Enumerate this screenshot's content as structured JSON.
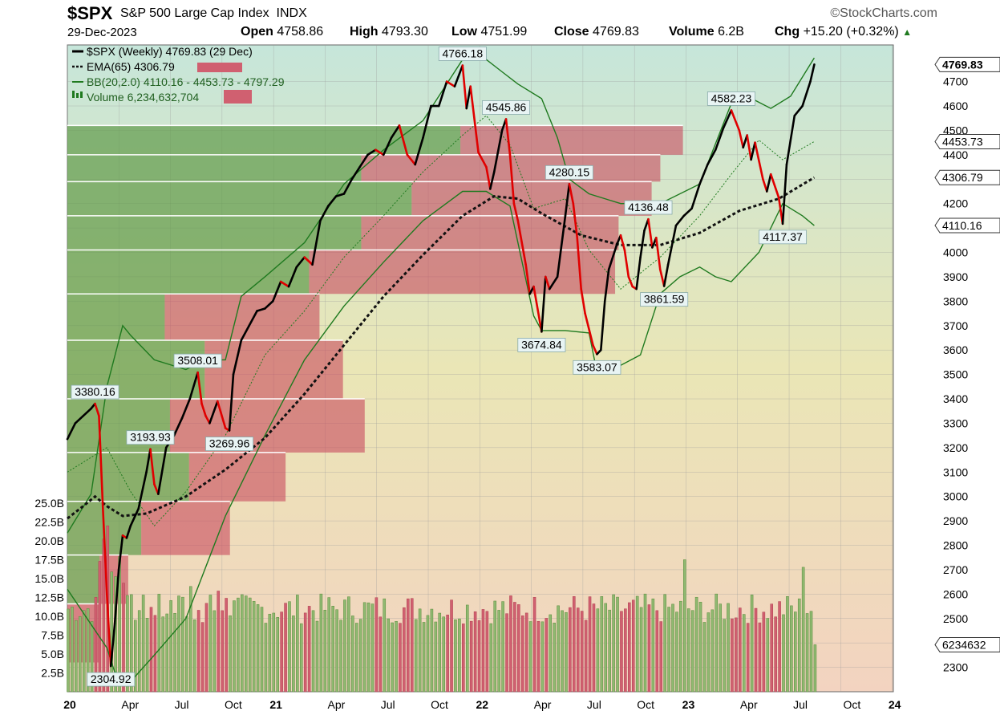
{
  "header": {
    "symbol": "$SPX",
    "name": "S&P 500 Large Cap Index",
    "exchange": "INDX",
    "source": "©StockCharts.com",
    "date": "29-Dec-2023",
    "open_label": "Open",
    "open": "4758.86",
    "high_label": "High",
    "high": "4793.30",
    "low_label": "Low",
    "low": "4751.99",
    "close_label": "Close",
    "close": "4769.83",
    "volume_label": "Volume",
    "volume": "6.2B",
    "chg_label": "Chg",
    "chg": "+15.20 (+0.32%)"
  },
  "legend": {
    "price": "$SPX (Weekly) 4769.83 (29 Dec)",
    "ema": "EMA(65) 4306.79",
    "bb": "BB(20,2.0) 4110.16 - 4453.73 - 4797.29",
    "volume": "Volume 6,234,632,704"
  },
  "colors": {
    "up": "#000000",
    "down": "#e00000",
    "ema": "#111111",
    "bb": "#1f7a1f",
    "vol_up": "#8fb870",
    "vol_down": "#d06070",
    "bg_top": "#c6e6da",
    "bg_bottom": "#f3e4c7"
  },
  "chart_data": {
    "type": "line",
    "title": "$SPX (Weekly)",
    "x_range": [
      "2020-01",
      "2024-01"
    ],
    "ylim": [
      2200,
      4850
    ],
    "x_tick_labels": [
      "20",
      "Apr",
      "Jul",
      "Oct",
      "21",
      "Apr",
      "Jul",
      "Oct",
      "22",
      "Apr",
      "Jul",
      "Oct",
      "23",
      "Apr",
      "Jul",
      "Oct",
      "24"
    ],
    "y_tick_labels": [
      "2300",
      "2400",
      "2500",
      "2600",
      "2700",
      "2800",
      "2900",
      "3000",
      "3100",
      "3200",
      "3300",
      "3400",
      "3500",
      "3600",
      "3700",
      "3800",
      "3900",
      "4000",
      "4100",
      "4200",
      "4300",
      "4400",
      "4500",
      "4600",
      "4700"
    ],
    "volume_tick_labels": [
      "2.5B",
      "5.0B",
      "7.5B",
      "10.0B",
      "12.5B",
      "15.0B",
      "17.5B",
      "20.0B",
      "22.5B",
      "25.0B"
    ],
    "price_path": [
      [
        0,
        3235
      ],
      [
        2,
        3300
      ],
      [
        4,
        3330
      ],
      [
        6,
        3360
      ],
      [
        7,
        3380
      ],
      [
        8,
        3330
      ],
      [
        9,
        2950
      ],
      [
        10,
        2600
      ],
      [
        11,
        2305
      ],
      [
        12,
        2480
      ],
      [
        13,
        2700
      ],
      [
        14,
        2840
      ],
      [
        15,
        2830
      ],
      [
        16,
        2880
      ],
      [
        18,
        2950
      ],
      [
        20,
        3100
      ],
      [
        21,
        3194
      ],
      [
        22,
        3050
      ],
      [
        23,
        3010
      ],
      [
        25,
        3200
      ],
      [
        27,
        3250
      ],
      [
        29,
        3320
      ],
      [
        31,
        3400
      ],
      [
        33,
        3508
      ],
      [
        34,
        3380
      ],
      [
        35,
        3330
      ],
      [
        36,
        3300
      ],
      [
        38,
        3390
      ],
      [
        40,
        3280
      ],
      [
        41,
        3270
      ],
      [
        42,
        3500
      ],
      [
        44,
        3640
      ],
      [
        46,
        3700
      ],
      [
        48,
        3760
      ],
      [
        50,
        3770
      ],
      [
        52,
        3800
      ],
      [
        54,
        3880
      ],
      [
        56,
        3860
      ],
      [
        58,
        3940
      ],
      [
        60,
        3980
      ],
      [
        62,
        3950
      ],
      [
        64,
        4130
      ],
      [
        66,
        4190
      ],
      [
        68,
        4230
      ],
      [
        70,
        4240
      ],
      [
        72,
        4300
      ],
      [
        74,
        4350
      ],
      [
        76,
        4400
      ],
      [
        78,
        4420
      ],
      [
        80,
        4400
      ],
      [
        82,
        4470
      ],
      [
        84,
        4520
      ],
      [
        86,
        4400
      ],
      [
        88,
        4360
      ],
      [
        90,
        4470
      ],
      [
        92,
        4600
      ],
      [
        94,
        4600
      ],
      [
        96,
        4700
      ],
      [
        98,
        4680
      ],
      [
        100,
        4766
      ],
      [
        101,
        4590
      ],
      [
        102,
        4680
      ],
      [
        104,
        4410
      ],
      [
        106,
        4350
      ],
      [
        107,
        4260
      ],
      [
        108,
        4330
      ],
      [
        110,
        4500
      ],
      [
        111,
        4546
      ],
      [
        112,
        4400
      ],
      [
        113,
        4200
      ],
      [
        114,
        4130
      ],
      [
        116,
        3950
      ],
      [
        117,
        3830
      ],
      [
        118,
        3860
      ],
      [
        120,
        3675
      ],
      [
        121,
        3900
      ],
      [
        122,
        3850
      ],
      [
        124,
        3900
      ],
      [
        126,
        4150
      ],
      [
        127,
        4280
      ],
      [
        128,
        4200
      ],
      [
        129,
        4060
      ],
      [
        130,
        3850
      ],
      [
        131,
        3750
      ],
      [
        133,
        3620
      ],
      [
        134,
        3583
      ],
      [
        135,
        3600
      ],
      [
        136,
        3800
      ],
      [
        137,
        3930
      ],
      [
        139,
        4030
      ],
      [
        140,
        4070
      ],
      [
        141,
        4010
      ],
      [
        142,
        3900
      ],
      [
        143,
        3860
      ],
      [
        144,
        3850
      ],
      [
        145,
        3980
      ],
      [
        146,
        4090
      ],
      [
        147,
        4136
      ],
      [
        148,
        4020
      ],
      [
        149,
        4060
      ],
      [
        150,
        3930
      ],
      [
        151,
        3862
      ],
      [
        152,
        3950
      ],
      [
        154,
        4110
      ],
      [
        156,
        4150
      ],
      [
        158,
        4180
      ],
      [
        160,
        4280
      ],
      [
        162,
        4360
      ],
      [
        164,
        4420
      ],
      [
        166,
        4510
      ],
      [
        168,
        4582
      ],
      [
        170,
        4500
      ],
      [
        171,
        4430
      ],
      [
        172,
        4480
      ],
      [
        173,
        4380
      ],
      [
        174,
        4450
      ],
      [
        176,
        4300
      ],
      [
        177,
        4250
      ],
      [
        178,
        4320
      ],
      [
        180,
        4225
      ],
      [
        181,
        4117
      ],
      [
        182,
        4360
      ],
      [
        184,
        4560
      ],
      [
        186,
        4600
      ],
      [
        188,
        4700
      ],
      [
        189,
        4770
      ]
    ],
    "ema_path": [
      [
        0,
        2910
      ],
      [
        4,
        2960
      ],
      [
        7,
        3000
      ],
      [
        10,
        2960
      ],
      [
        14,
        2920
      ],
      [
        20,
        2930
      ],
      [
        30,
        3000
      ],
      [
        40,
        3110
      ],
      [
        50,
        3240
      ],
      [
        60,
        3420
      ],
      [
        70,
        3620
      ],
      [
        80,
        3820
      ],
      [
        90,
        3990
      ],
      [
        100,
        4150
      ],
      [
        108,
        4230
      ],
      [
        114,
        4220
      ],
      [
        120,
        4160
      ],
      [
        130,
        4070
      ],
      [
        140,
        4030
      ],
      [
        150,
        4030
      ],
      [
        160,
        4080
      ],
      [
        170,
        4170
      ],
      [
        180,
        4220
      ],
      [
        189,
        4307
      ]
    ],
    "bb_upper_path": [
      [
        0,
        2850
      ],
      [
        6,
        3010
      ],
      [
        10,
        3450
      ],
      [
        14,
        3700
      ],
      [
        16,
        3660
      ],
      [
        22,
        3560
      ],
      [
        30,
        3520
      ],
      [
        35,
        3560
      ],
      [
        40,
        3560
      ],
      [
        44,
        3820
      ],
      [
        50,
        3900
      ],
      [
        60,
        4040
      ],
      [
        70,
        4280
      ],
      [
        80,
        4420
      ],
      [
        90,
        4540
      ],
      [
        100,
        4790
      ],
      [
        106,
        4790
      ],
      [
        110,
        4740
      ],
      [
        114,
        4690
      ],
      [
        120,
        4630
      ],
      [
        124,
        4470
      ],
      [
        127,
        4300
      ],
      [
        132,
        4240
      ],
      [
        140,
        4200
      ],
      [
        150,
        4200
      ],
      [
        160,
        4280
      ],
      [
        168,
        4610
      ],
      [
        172,
        4640
      ],
      [
        178,
        4590
      ],
      [
        183,
        4640
      ],
      [
        189,
        4797
      ]
    ],
    "bb_middle_path": [
      [
        0,
        3100
      ],
      [
        10,
        3200
      ],
      [
        16,
        3020
      ],
      [
        22,
        2880
      ],
      [
        30,
        3020
      ],
      [
        40,
        3250
      ],
      [
        50,
        3580
      ],
      [
        60,
        3760
      ],
      [
        70,
        3980
      ],
      [
        80,
        4150
      ],
      [
        90,
        4330
      ],
      [
        100,
        4480
      ],
      [
        106,
        4560
      ],
      [
        112,
        4440
      ],
      [
        118,
        4180
      ],
      [
        126,
        4220
      ],
      [
        132,
        4010
      ],
      [
        140,
        3850
      ],
      [
        150,
        3980
      ],
      [
        160,
        4150
      ],
      [
        168,
        4320
      ],
      [
        175,
        4460
      ],
      [
        181,
        4380
      ],
      [
        189,
        4454
      ]
    ],
    "bb_lower_path": [
      [
        0,
        2620
      ],
      [
        10,
        2380
      ],
      [
        12,
        2280
      ],
      [
        17,
        2260
      ],
      [
        22,
        2350
      ],
      [
        30,
        2500
      ],
      [
        40,
        2920
      ],
      [
        50,
        3250
      ],
      [
        60,
        3560
      ],
      [
        70,
        3780
      ],
      [
        80,
        3960
      ],
      [
        90,
        4130
      ],
      [
        100,
        4250
      ],
      [
        106,
        4250
      ],
      [
        112,
        4190
      ],
      [
        118,
        3740
      ],
      [
        120,
        3680
      ],
      [
        126,
        3680
      ],
      [
        132,
        3670
      ],
      [
        134,
        3510
      ],
      [
        138,
        3520
      ],
      [
        145,
        3580
      ],
      [
        150,
        3830
      ],
      [
        155,
        3900
      ],
      [
        160,
        3940
      ],
      [
        164,
        3900
      ],
      [
        168,
        3880
      ],
      [
        175,
        4000
      ],
      [
        181,
        4200
      ],
      [
        186,
        4150
      ],
      [
        189,
        4110
      ]
    ],
    "annotations": [
      {
        "label": "3380.16",
        "week": 7,
        "value": 3380.16,
        "side": "above"
      },
      {
        "label": "2304.92",
        "week": 11,
        "value": 2304.92,
        "side": "below"
      },
      {
        "label": "3193.93",
        "week": 21,
        "value": 3193.93,
        "side": "above"
      },
      {
        "label": "3508.01",
        "week": 33,
        "value": 3508.01,
        "side": "above"
      },
      {
        "label": "3269.96",
        "week": 41,
        "value": 3269.96,
        "side": "below"
      },
      {
        "label": "4766.18",
        "week": 100,
        "value": 4766.18,
        "side": "above"
      },
      {
        "label": "4545.86",
        "week": 111,
        "value": 4545.86,
        "side": "above"
      },
      {
        "label": "3674.84",
        "week": 120,
        "value": 3674.84,
        "side": "below"
      },
      {
        "label": "4280.15",
        "week": 127,
        "value": 4280.15,
        "side": "above"
      },
      {
        "label": "3583.07",
        "week": 134,
        "value": 3583.07,
        "side": "below"
      },
      {
        "label": "4136.48",
        "week": 147,
        "value": 4136.48,
        "side": "above"
      },
      {
        "label": "3861.59",
        "week": 151,
        "value": 3861.59,
        "side": "below"
      },
      {
        "label": "4582.23",
        "week": 168,
        "value": 4582.23,
        "side": "above"
      },
      {
        "label": "4117.37",
        "week": 181,
        "value": 4117.37,
        "side": "below"
      }
    ],
    "right_tags": [
      {
        "label": "4769.83",
        "value": 4769.83,
        "bold": true
      },
      {
        "label": "4453.73",
        "value": 4453.73,
        "bold": false
      },
      {
        "label": "4306.79",
        "value": 4306.79,
        "bold": false
      },
      {
        "label": "4110.16",
        "value": 4110.16,
        "bold": false
      }
    ],
    "volume_tag": "6234632",
    "volume_by_price": [
      {
        "price_low": 4400,
        "price_high": 4520,
        "up": 4520,
        "down": 2560
      },
      {
        "price_low": 4290,
        "price_high": 4400,
        "up": 3380,
        "down": 3440
      },
      {
        "price_low": 4150,
        "price_high": 4290,
        "up": 3960,
        "down": 2760
      },
      {
        "price_low": 4010,
        "price_high": 4150,
        "up": 3380,
        "down": 2960
      },
      {
        "price_low": 3830,
        "price_high": 4010,
        "up": 2780,
        "down": 3520
      },
      {
        "price_low": 3640,
        "price_high": 3830,
        "up": 1120,
        "down": 1780
      },
      {
        "price_low": 3400,
        "price_high": 3640,
        "up": 1580,
        "down": 1590
      },
      {
        "price_low": 3180,
        "price_high": 3400,
        "up": 1180,
        "down": 2240
      },
      {
        "price_low": 2980,
        "price_high": 3180,
        "up": 1400,
        "down": 1110
      },
      {
        "price_low": 2760,
        "price_high": 2980,
        "up": 850,
        "down": 1020
      },
      {
        "price_low": 2560,
        "price_high": 2760,
        "up": 370,
        "down": 330
      },
      {
        "price_low": 2320,
        "price_high": 2560,
        "up": 0,
        "down": 380
      }
    ]
  }
}
